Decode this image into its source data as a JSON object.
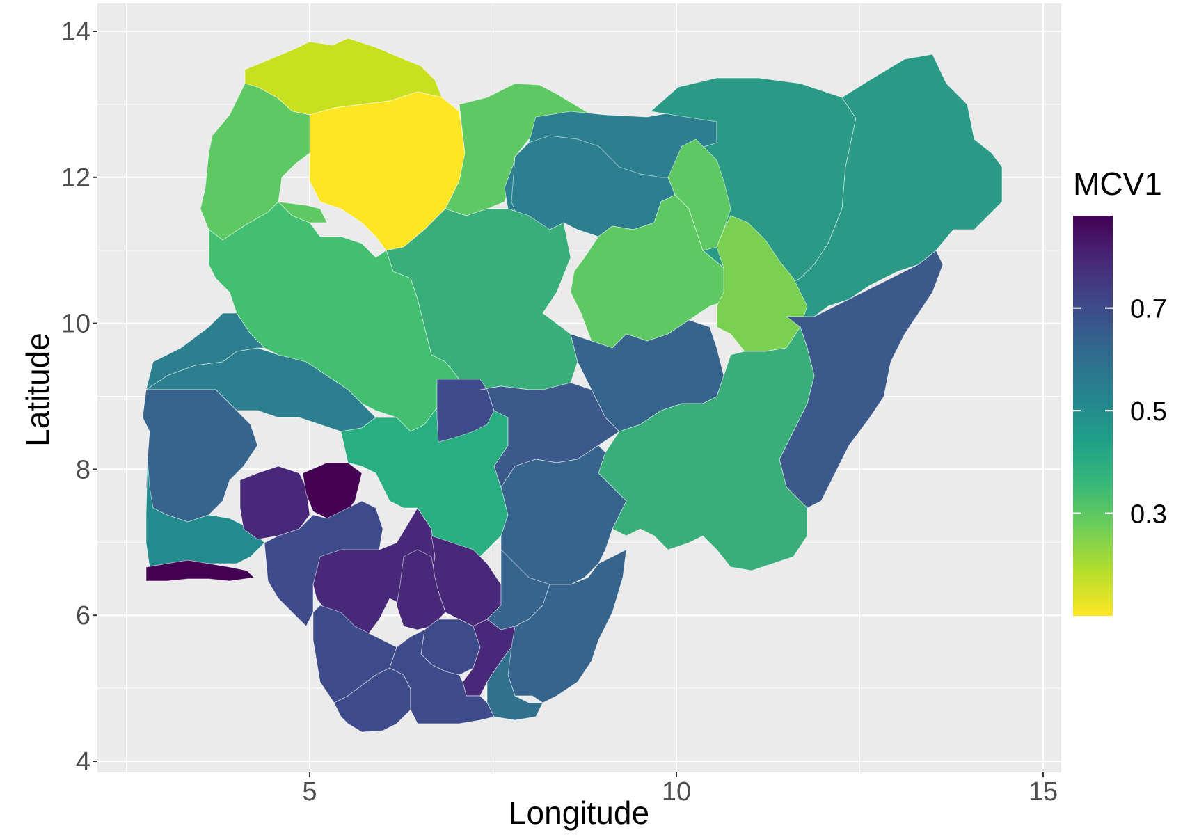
{
  "chart_data": {
    "type": "choropleth",
    "xlabel": "Longitude",
    "ylabel": "Latitude",
    "x_ticks": [
      5,
      10,
      15
    ],
    "y_ticks": [
      4,
      6,
      8,
      10,
      12,
      14
    ],
    "xlim": [
      2.6,
      15.2
    ],
    "ylim": [
      3.85,
      14.4
    ],
    "grid": true,
    "legend": {
      "title": "MCV1",
      "ticks": [
        "0.3",
        "0.5",
        "0.7"
      ],
      "range": [
        0.1,
        0.88
      ],
      "position": "right",
      "palette": "viridis-reversed"
    },
    "colors": {
      "panel_bg": "#ebebeb",
      "gridline": "#ffffff",
      "viridis_stops": [
        "#fde725",
        "#b5de2b",
        "#6ece58",
        "#35b779",
        "#1f9e89",
        "#26828e",
        "#31688e",
        "#3e4989",
        "#482878",
        "#440154"
      ]
    }
  }
}
